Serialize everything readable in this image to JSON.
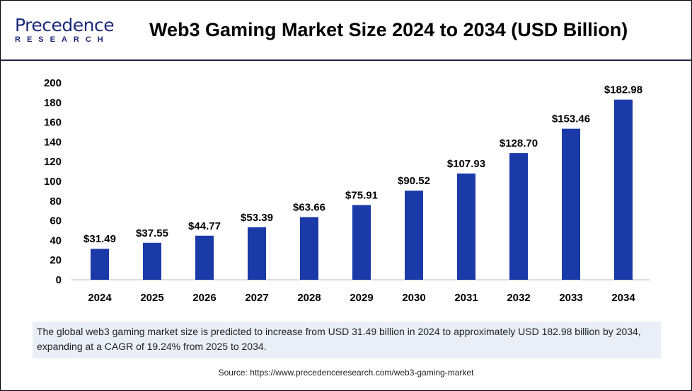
{
  "logo": {
    "line1": "Precedence",
    "line2": "RESEARCH"
  },
  "title": "Web3 Gaming Market Size 2024 to 2034 (USD Billion)",
  "summary": "The global web3 gaming market size is predicted to increase from USD 31.49 billion in 2024 to approximately USD 182.98 billion by 2034, expanding at a CAGR of 19.24% from 2025 to 2034.",
  "source": "Source: https://www.precedenceresearch.com/web3-gaming-market",
  "chart_data": {
    "type": "bar",
    "title": "Web3 Gaming Market Size 2024 to 2034 (USD Billion)",
    "categories": [
      "2024",
      "2025",
      "2026",
      "2027",
      "2028",
      "2029",
      "2030",
      "2031",
      "2032",
      "2033",
      "2034"
    ],
    "values": [
      31.49,
      37.55,
      44.77,
      53.39,
      63.66,
      75.91,
      90.52,
      107.93,
      128.7,
      153.46,
      182.98
    ],
    "data_labels": [
      "$31.49",
      "$37.55",
      "$44.77",
      "$53.39",
      "$63.66",
      "$75.91",
      "$90.52",
      "$107.93",
      "$128.70",
      "$153.46",
      "$182.98"
    ],
    "yticks": [
      "0",
      "20",
      "40",
      "60",
      "80",
      "100",
      "120",
      "140",
      "160",
      "180",
      "200"
    ],
    "ylim": [
      0,
      200
    ],
    "grid": false,
    "bar_color": "#1a3aa8"
  }
}
